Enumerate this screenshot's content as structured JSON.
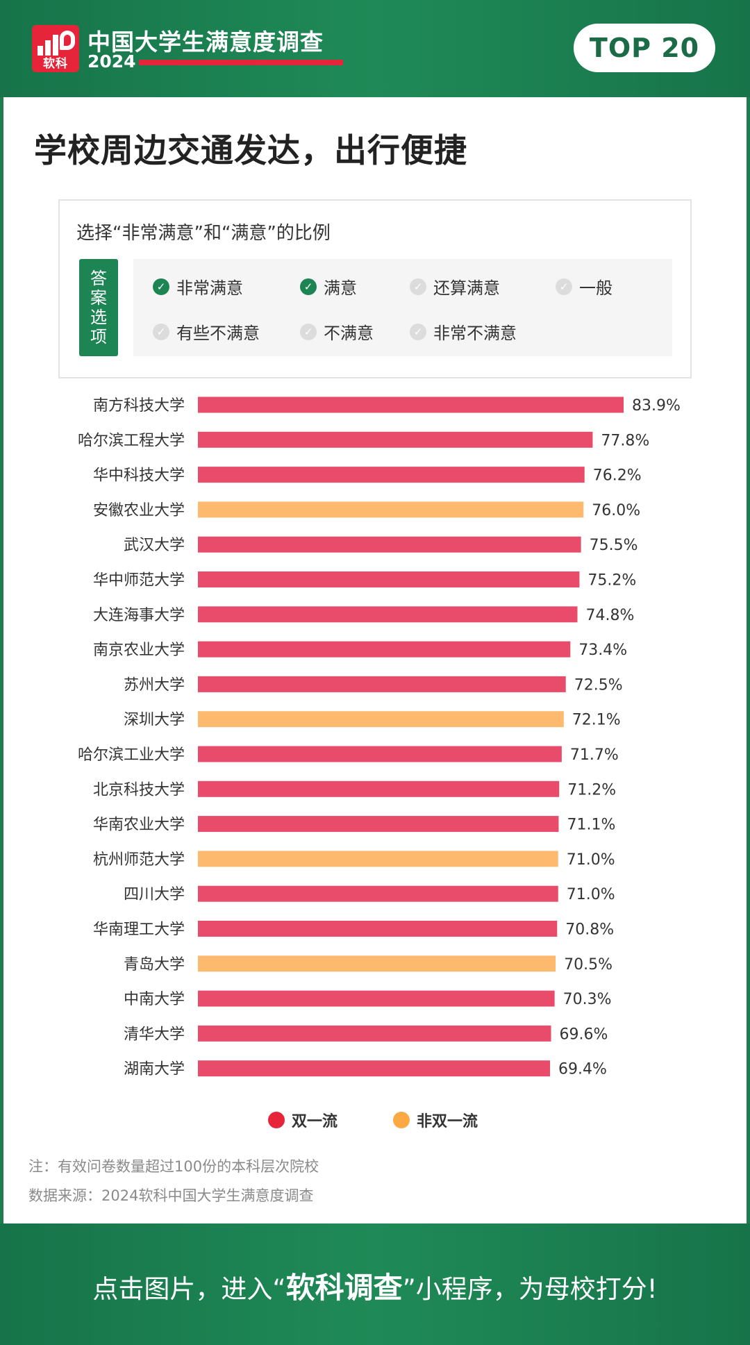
{
  "header": {
    "logo_text": "软科",
    "title": "中国大学生满意度调查",
    "year": "2024",
    "badge": "TOP 20"
  },
  "headline": "学校周边交通发达，出行便捷",
  "question": {
    "text": "选择“非常满意”和“满意”的比例",
    "tag": "答案选项",
    "options": [
      {
        "label": "非常满意",
        "selected": true
      },
      {
        "label": "满意",
        "selected": true
      },
      {
        "label": "还算满意",
        "selected": false
      },
      {
        "label": "一般",
        "selected": false
      },
      {
        "label": "有些不满意",
        "selected": false
      },
      {
        "label": "不满意",
        "selected": false
      },
      {
        "label": "非常不满意",
        "selected": false
      }
    ]
  },
  "colors": {
    "double_first_class": "#e94b6a",
    "non_double_first_class": "#fdba6e",
    "green": "#1d8454",
    "legend_red": "#e6253a",
    "legend_orange": "#fca944"
  },
  "chart_data": {
    "type": "bar",
    "orientation": "horizontal",
    "categories": [
      "南方科技大学",
      "哈尔滨工程大学",
      "华中科技大学",
      "安徽农业大学",
      "武汉大学",
      "华中师范大学",
      "大连海事大学",
      "南京农业大学",
      "苏州大学",
      "深圳大学",
      "哈尔滨工业大学",
      "北京科技大学",
      "华南农业大学",
      "杭州师范大学",
      "四川大学",
      "华南理工大学",
      "青岛大学",
      "中南大学",
      "清华大学",
      "湖南大学"
    ],
    "values": [
      83.9,
      77.8,
      76.2,
      76.0,
      75.5,
      75.2,
      74.8,
      73.4,
      72.5,
      72.1,
      71.7,
      71.2,
      71.1,
      71.0,
      71.0,
      70.8,
      70.5,
      70.3,
      69.6,
      69.4
    ],
    "value_labels": [
      "83.9%",
      "77.8%",
      "76.2%",
      "76.0%",
      "75.5%",
      "75.2%",
      "74.8%",
      "73.4%",
      "72.5%",
      "72.1%",
      "71.7%",
      "71.2%",
      "71.1%",
      "71.0%",
      "71.0%",
      "70.8%",
      "70.5%",
      "70.3%",
      "69.6%",
      "69.4%"
    ],
    "group": [
      "双一流",
      "双一流",
      "双一流",
      "非双一流",
      "双一流",
      "双一流",
      "双一流",
      "双一流",
      "双一流",
      "非双一流",
      "双一流",
      "双一流",
      "双一流",
      "非双一流",
      "双一流",
      "双一流",
      "非双一流",
      "双一流",
      "双一流",
      "双一流"
    ],
    "unit": "%",
    "xlim": [
      0,
      83.9
    ],
    "grid": false,
    "legend_position": "bottom",
    "legend": [
      "双一流",
      "非双一流"
    ]
  },
  "notes": {
    "note1": "注：有效问卷数量超过100份的本科层次院校",
    "note2": "数据来源：2024软科中国大学生满意度调查"
  },
  "footer": {
    "pre": "点击图片，进入“",
    "bold": "软科调查",
    "post": "”小程序，为母校打分!"
  }
}
